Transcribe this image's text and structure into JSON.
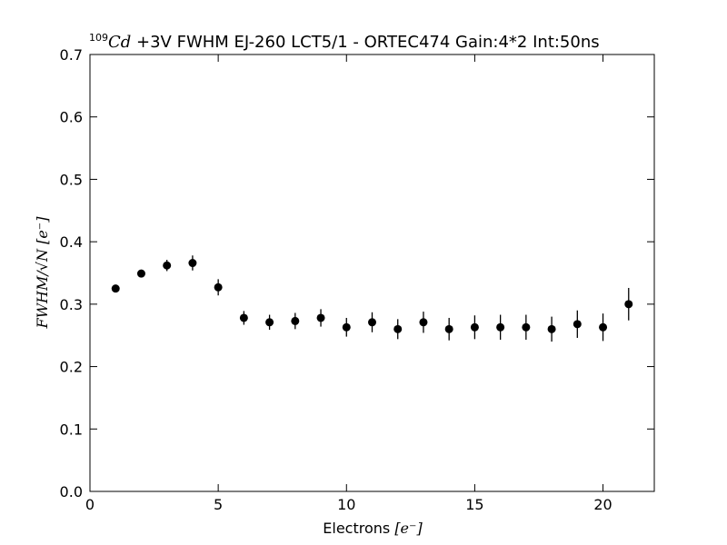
{
  "chart_data": {
    "type": "scatter",
    "title": {
      "isotope_mass": "109",
      "isotope_symbol": "Cd",
      "text": " +3V FWHM EJ-260 LCT5/1 - ORTEC474 Gain:4*2 Int:50ns"
    },
    "xlabel": {
      "text": "Electrons ",
      "unit": "[e⁻]"
    },
    "ylabel": {
      "main": "FWHM/√N",
      "unit": "[e⁻]"
    },
    "xlim": [
      0,
      22
    ],
    "ylim": [
      0.0,
      0.7
    ],
    "x_ticks": [
      0,
      5,
      10,
      15,
      20
    ],
    "x_tick_labels": [
      "0",
      "5",
      "10",
      "15",
      "20"
    ],
    "y_ticks": [
      0.0,
      0.1,
      0.2,
      0.3,
      0.4,
      0.5,
      0.6,
      0.7
    ],
    "y_tick_labels": [
      "0.0",
      "0.1",
      "0.2",
      "0.3",
      "0.4",
      "0.5",
      "0.6",
      "0.7"
    ],
    "grid": false,
    "marker_color": "#000000",
    "series": [
      {
        "x": [
          1,
          2,
          3,
          4,
          5,
          6,
          7,
          8,
          9,
          10,
          11,
          12,
          13,
          14,
          15,
          16,
          17,
          18,
          19,
          20,
          21
        ],
        "y": [
          0.325,
          0.349,
          0.362,
          0.366,
          0.327,
          0.278,
          0.271,
          0.273,
          0.278,
          0.263,
          0.271,
          0.26,
          0.271,
          0.26,
          0.263,
          0.263,
          0.263,
          0.26,
          0.268,
          0.263,
          0.3
        ],
        "yerr": [
          0.003,
          0.006,
          0.009,
          0.012,
          0.013,
          0.011,
          0.012,
          0.013,
          0.014,
          0.015,
          0.016,
          0.016,
          0.017,
          0.018,
          0.019,
          0.02,
          0.02,
          0.02,
          0.022,
          0.022,
          0.026
        ]
      }
    ]
  }
}
